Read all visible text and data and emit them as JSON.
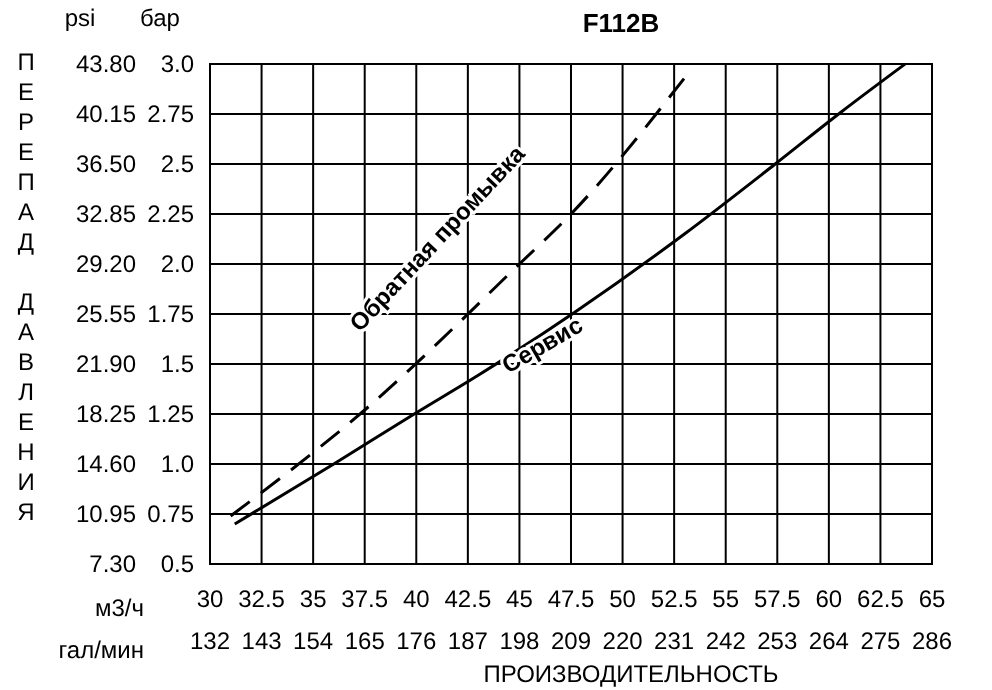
{
  "chart_data": {
    "type": "line",
    "title": "F112B",
    "xlabel": "ПРОИЗВОДИТЕЛЬНОСТЬ",
    "ylabel": "ПЕРЕПАД ДАВЛЕНИЯ",
    "xlim": [
      30,
      65
    ],
    "xticks": [
      30,
      32.5,
      35,
      37.5,
      40,
      42.5,
      45,
      47.5,
      50,
      52.5,
      55,
      57.5,
      60,
      62.5,
      65
    ],
    "x2lim": [
      132,
      286
    ],
    "x2ticks": [
      132,
      143,
      154,
      165,
      176,
      187,
      198,
      209,
      220,
      231,
      242,
      253,
      264,
      275,
      286
    ],
    "ylim": [
      0.5,
      3.0
    ],
    "yticks": [
      {
        "value": 0.5,
        "label": "0.5"
      },
      {
        "value": 0.75,
        "label": "0.75"
      },
      {
        "value": 1.0,
        "label": "1.0"
      },
      {
        "value": 1.25,
        "label": "1.25"
      },
      {
        "value": 1.5,
        "label": "1.5"
      },
      {
        "value": 1.75,
        "label": "1.75"
      },
      {
        "value": 2.0,
        "label": "2.0"
      },
      {
        "value": 2.25,
        "label": "2.25"
      },
      {
        "value": 2.5,
        "label": "2.5"
      },
      {
        "value": 2.75,
        "label": "2.75"
      },
      {
        "value": 3.0,
        "label": "3.0"
      }
    ],
    "y2lim": [
      7.3,
      43.8
    ],
    "y2ticks": [
      {
        "value": 7.3,
        "label": "7.30"
      },
      {
        "value": 10.95,
        "label": "10.95"
      },
      {
        "value": 14.6,
        "label": "14.60"
      },
      {
        "value": 18.25,
        "label": "18.25"
      },
      {
        "value": 21.9,
        "label": "21.90"
      },
      {
        "value": 25.55,
        "label": "25.55"
      },
      {
        "value": 29.2,
        "label": "29.20"
      },
      {
        "value": 32.85,
        "label": "32.85"
      },
      {
        "value": 36.5,
        "label": "36.50"
      },
      {
        "value": 40.15,
        "label": "40.15"
      },
      {
        "value": 43.8,
        "label": "43.80"
      }
    ],
    "grid": true,
    "series": [
      {
        "name": "Сервис",
        "color": "#000000",
        "line_style": "solid",
        "x": [
          31.2,
          36.0,
          39.9,
          43.1,
          47.7,
          53.0,
          57.4,
          60.6,
          63.7
        ],
        "values": [
          0.7,
          1.0,
          1.25,
          1.45,
          1.76,
          2.15,
          2.5,
          2.76,
          3.0
        ]
      },
      {
        "name": "Обратная промывка",
        "color": "#000000",
        "line_style": "dashed",
        "x": [
          31.0,
          37.5,
          45.0,
          47.5,
          53.0
        ],
        "values": [
          0.74,
          1.27,
          2.0,
          2.25,
          2.93
        ]
      }
    ],
    "annotations": [
      "psi",
      "бар",
      "м3/ч",
      "гал/мин"
    ]
  }
}
